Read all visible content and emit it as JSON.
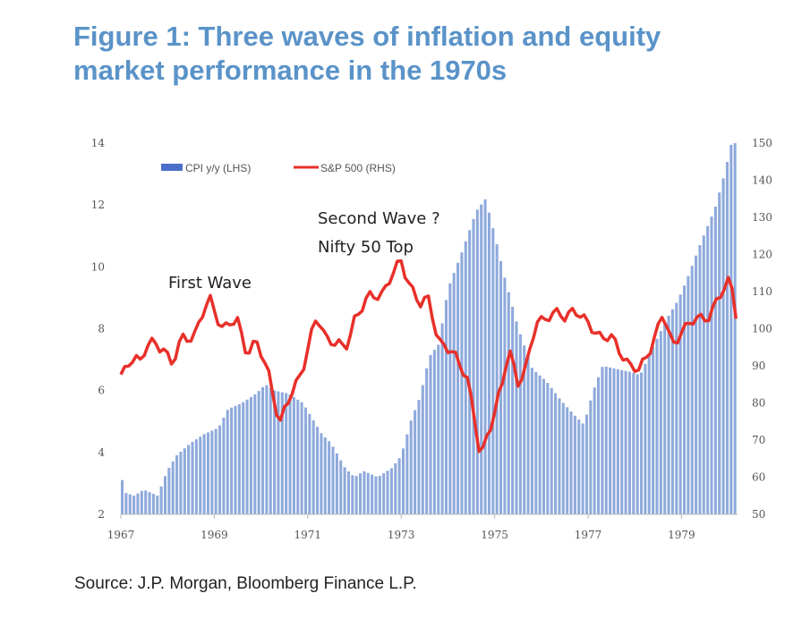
{
  "title_line1": "Figure 1: Three waves of inflation and equity",
  "title_line2": "market performance in the 1970s",
  "source": "Source: J.P. Morgan, Bloomberg Finance L.P.",
  "colors": {
    "cpi": "#8ea9dc",
    "spx": "#e8302a",
    "title": "#5a93c8"
  },
  "chart_data": {
    "type": "bar+line",
    "title": "Figure 1: Three waves of inflation and equity market performance in the 1970s",
    "x_start": 1967.0,
    "x_end": 1980.2,
    "xticks": [
      "1967",
      "1969",
      "1971",
      "1973",
      "1975",
      "1977",
      "1979"
    ],
    "xtick_values": [
      1967,
      1969,
      1971,
      1973,
      1975,
      1977,
      1979
    ],
    "yleft": {
      "label": "CPI y/y (LHS)",
      "lim": [
        2,
        14
      ],
      "ticks": [
        "2",
        "4",
        "6",
        "8",
        "10",
        "12",
        "14"
      ]
    },
    "yright": {
      "label": "S&P 500 (RHS)",
      "lim": [
        50,
        150
      ],
      "ticks": [
        "50",
        "60",
        "70",
        "80",
        "90",
        "100",
        "110",
        "120",
        "130",
        "140",
        "150"
      ]
    },
    "legend": [
      "CPI y/y (LHS)",
      "S&P 500 (RHS)"
    ],
    "legend_position": "top-left",
    "annotations": [
      "First Wave",
      "Second Wave ?",
      "Nifty 50 Top"
    ],
    "cpi_keypoints": [
      [
        1967.0,
        3.4
      ],
      [
        1967.1,
        2.7
      ],
      [
        1967.3,
        2.6
      ],
      [
        1967.5,
        2.8
      ],
      [
        1967.8,
        2.6
      ],
      [
        1968.0,
        3.4
      ],
      [
        1968.2,
        3.9
      ],
      [
        1968.5,
        4.3
      ],
      [
        1968.8,
        4.6
      ],
      [
        1969.1,
        4.8
      ],
      [
        1969.3,
        5.4
      ],
      [
        1969.6,
        5.6
      ],
      [
        1969.9,
        5.9
      ],
      [
        1970.1,
        6.2
      ],
      [
        1970.3,
        6.0
      ],
      [
        1970.6,
        5.9
      ],
      [
        1970.9,
        5.6
      ],
      [
        1971.1,
        5.1
      ],
      [
        1971.3,
        4.6
      ],
      [
        1971.5,
        4.3
      ],
      [
        1971.8,
        3.5
      ],
      [
        1972.0,
        3.2
      ],
      [
        1972.2,
        3.4
      ],
      [
        1972.5,
        3.2
      ],
      [
        1972.8,
        3.5
      ],
      [
        1973.0,
        3.9
      ],
      [
        1973.2,
        5.0
      ],
      [
        1973.4,
        5.8
      ],
      [
        1973.6,
        7.1
      ],
      [
        1973.8,
        7.5
      ],
      [
        1974.0,
        9.3
      ],
      [
        1974.3,
        10.5
      ],
      [
        1974.6,
        11.8
      ],
      [
        1974.8,
        12.2
      ],
      [
        1975.0,
        11.0
      ],
      [
        1975.2,
        9.7
      ],
      [
        1975.5,
        8.0
      ],
      [
        1975.8,
        6.7
      ],
      [
        1976.1,
        6.3
      ],
      [
        1976.4,
        5.7
      ],
      [
        1976.7,
        5.2
      ],
      [
        1976.9,
        4.9
      ],
      [
        1977.1,
        6.0
      ],
      [
        1977.3,
        6.8
      ],
      [
        1977.6,
        6.7
      ],
      [
        1977.9,
        6.6
      ],
      [
        1978.1,
        6.5
      ],
      [
        1978.4,
        7.5
      ],
      [
        1978.7,
        8.4
      ],
      [
        1978.9,
        8.9
      ],
      [
        1979.1,
        9.6
      ],
      [
        1979.4,
        10.8
      ],
      [
        1979.7,
        11.9
      ],
      [
        1979.9,
        13.0
      ],
      [
        1980.05,
        14.0
      ],
      [
        1980.2,
        14.0
      ]
    ],
    "spx_keypoints": [
      [
        1967.0,
        87
      ],
      [
        1967.1,
        88
      ],
      [
        1967.3,
        94
      ],
      [
        1967.4,
        91
      ],
      [
        1967.6,
        96
      ],
      [
        1967.8,
        95
      ],
      [
        1967.9,
        96
      ],
      [
        1968.1,
        90
      ],
      [
        1968.3,
        97
      ],
      [
        1968.6,
        99
      ],
      [
        1968.9,
        108
      ],
      [
        1969.2,
        100
      ],
      [
        1969.5,
        102
      ],
      [
        1969.7,
        94
      ],
      [
        1969.9,
        96
      ],
      [
        1970.2,
        87
      ],
      [
        1970.4,
        74
      ],
      [
        1970.7,
        84
      ],
      [
        1970.9,
        90
      ],
      [
        1971.2,
        103
      ],
      [
        1971.4,
        98
      ],
      [
        1971.6,
        96
      ],
      [
        1971.8,
        94
      ],
      [
        1972.0,
        103
      ],
      [
        1972.3,
        108
      ],
      [
        1972.6,
        110
      ],
      [
        1972.8,
        114
      ],
      [
        1973.0,
        118
      ],
      [
        1973.2,
        112
      ],
      [
        1973.4,
        106
      ],
      [
        1973.6,
        108
      ],
      [
        1973.8,
        97
      ],
      [
        1974.0,
        94
      ],
      [
        1974.2,
        92
      ],
      [
        1974.4,
        88
      ],
      [
        1974.6,
        73
      ],
      [
        1974.7,
        64
      ],
      [
        1974.8,
        70
      ],
      [
        1975.0,
        78
      ],
      [
        1975.2,
        86
      ],
      [
        1975.3,
        95
      ],
      [
        1975.5,
        86
      ],
      [
        1975.7,
        90
      ],
      [
        1975.9,
        102
      ],
      [
        1976.2,
        104
      ],
      [
        1976.5,
        103
      ],
      [
        1976.7,
        106
      ],
      [
        1976.9,
        102
      ],
      [
        1977.2,
        99
      ],
      [
        1977.5,
        97
      ],
      [
        1977.8,
        92
      ],
      [
        1978.1,
        88
      ],
      [
        1978.3,
        94
      ],
      [
        1978.6,
        104
      ],
      [
        1978.8,
        95
      ],
      [
        1979.0,
        100
      ],
      [
        1979.3,
        102
      ],
      [
        1979.6,
        104
      ],
      [
        1979.9,
        110
      ],
      [
        1980.05,
        114
      ],
      [
        1980.2,
        102
      ]
    ]
  }
}
